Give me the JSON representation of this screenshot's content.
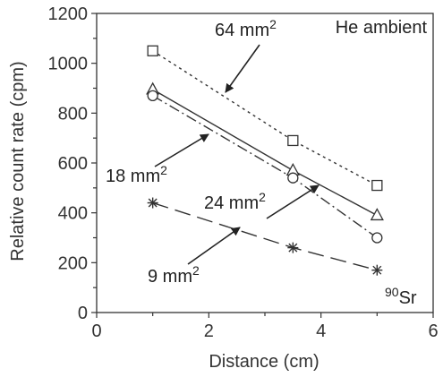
{
  "chart_data": {
    "type": "line",
    "title": "",
    "xlabel": "Distance (cm)",
    "ylabel": "Relative count rate (cpm)",
    "xlim": [
      0,
      6
    ],
    "ylim": [
      0,
      1200
    ],
    "xticks": [
      0,
      2,
      4,
      6
    ],
    "yticks": [
      0,
      200,
      400,
      600,
      800,
      1000,
      1200
    ],
    "grid": false,
    "legend": "none",
    "series": [
      {
        "area": "64",
        "marker": "square",
        "dash": "short-dash",
        "color": "#333333",
        "x": [
          1,
          3.5,
          5
        ],
        "y": [
          1050,
          690,
          510
        ]
      },
      {
        "area": "18",
        "marker": "triangle",
        "dash": "solid",
        "color": "#333333",
        "x": [
          1,
          3.5,
          5
        ],
        "y": [
          895,
          570,
          390
        ]
      },
      {
        "area": "24",
        "marker": "circle",
        "dash": "dash-dot",
        "color": "#333333",
        "x": [
          1,
          3.5,
          5
        ],
        "y": [
          870,
          540,
          300
        ]
      },
      {
        "area": "9",
        "marker": "asterisk",
        "dash": "long-dash",
        "color": "#333333",
        "x": [
          1,
          3.5,
          5
        ],
        "y": [
          440,
          260,
          170
        ]
      }
    ],
    "annotations": [
      {
        "text": "64 mm",
        "sup": "2"
      },
      {
        "text": "18 mm",
        "sup": "2"
      },
      {
        "text": "24 mm",
        "sup": "2"
      },
      {
        "text": "9 mm",
        "sup": "2"
      },
      {
        "text": "He ambient",
        "sup": ""
      },
      {
        "text": "Sr",
        "pre_sup": "90"
      }
    ]
  }
}
